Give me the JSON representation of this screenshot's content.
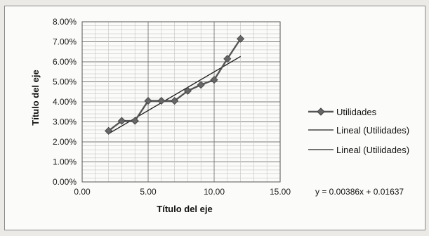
{
  "chart_data": {
    "type": "line",
    "title": "",
    "xlabel": "Título del eje",
    "ylabel": "Título del eje",
    "xlim": [
      0,
      15
    ],
    "ylim": [
      0,
      0.08
    ],
    "x_ticks": [
      "0.00",
      "5.00",
      "10.00",
      "15.00"
    ],
    "y_ticks": [
      "0.00%",
      "1.00%",
      "2.00%",
      "3.00%",
      "4.00%",
      "5.00%",
      "6.00%",
      "7.00%",
      "8.00%"
    ],
    "grid": true,
    "legend_position": "right",
    "series": [
      {
        "name": "Utilidades",
        "marker": "diamond",
        "color": "#555555",
        "x": [
          2,
          3,
          4,
          5,
          6,
          7,
          8,
          9,
          10,
          11,
          12
        ],
        "values": [
          0.0255,
          0.0305,
          0.0305,
          0.0405,
          0.0405,
          0.0405,
          0.0455,
          0.0485,
          0.051,
          0.0615,
          0.0715
        ]
      }
    ],
    "trendlines": [
      {
        "name": "Lineal (Utilidades)",
        "slope": 0.00386,
        "intercept": 0.01637,
        "x_range": [
          2,
          12
        ],
        "color": "#222222"
      },
      {
        "name": "Lineal (Utilidades)",
        "slope": 0.00386,
        "intercept": 0.01637,
        "x_range": [
          2,
          12
        ],
        "color": "#222222"
      }
    ],
    "equation": "y = 0.00386x + 0.01637"
  }
}
